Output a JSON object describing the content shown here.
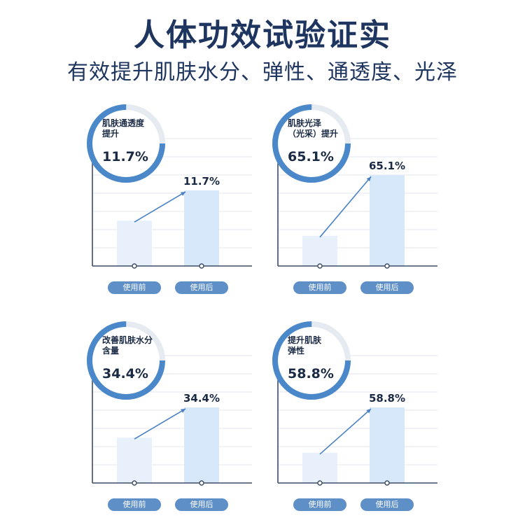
{
  "header": {
    "title": "人体功效试验证实",
    "subtitle": "有效提升肌肤水分、弹性、通透度、光泽"
  },
  "colors": {
    "title": "#1e3560",
    "ring": "#4b88c9",
    "arrow": "#4a82c4",
    "pill": "#5e8fc7",
    "bar_before": "#e8f1fb",
    "bar_after": "#d6e8fa"
  },
  "chart_data": [
    {
      "type": "bar",
      "circle_label": "肌肤通透度\n提升",
      "circle_value": "11.7%",
      "value_label": "11.7%",
      "categories": [
        "使用前",
        "使用后"
      ],
      "values": [
        0.27,
        0.45
      ],
      "ring_fraction": 0.75
    },
    {
      "type": "bar",
      "circle_label": "肌肤光泽\n（光采）提升",
      "circle_value": "65.1%",
      "value_label": "65.1%",
      "categories": [
        "使用前",
        "使用后"
      ],
      "values": [
        0.18,
        0.54
      ],
      "ring_fraction": 0.75
    },
    {
      "type": "bar",
      "circle_label": "改善肌肤水分\n含量",
      "circle_value": "34.4%",
      "value_label": "34.4%",
      "categories": [
        "使用前",
        "使用后"
      ],
      "values": [
        0.27,
        0.45
      ],
      "ring_fraction": 0.75
    },
    {
      "type": "bar",
      "circle_label": "提升肌肤\n弹性",
      "circle_value": "58.8%",
      "value_label": "58.8%",
      "categories": [
        "使用前",
        "使用后"
      ],
      "values": [
        0.18,
        0.45
      ],
      "ring_fraction": 0.75
    }
  ]
}
